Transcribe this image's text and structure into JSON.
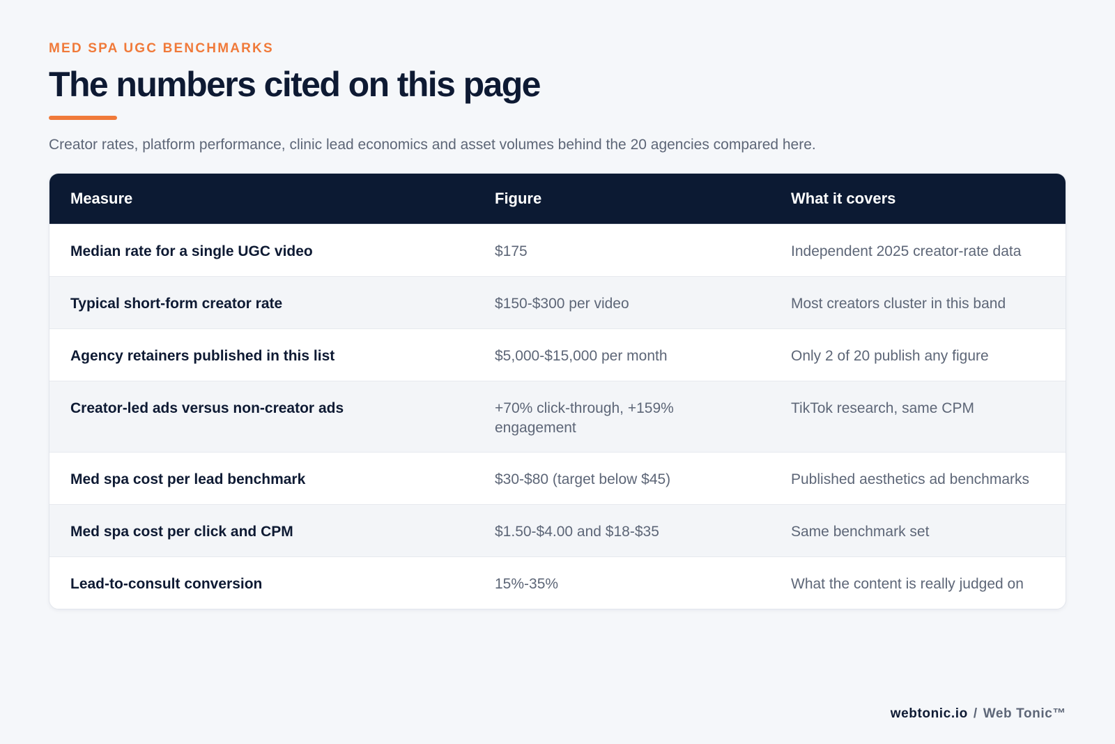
{
  "header": {
    "eyebrow": "MED SPA UGC BENCHMARKS",
    "title": "The numbers cited on this page",
    "subtitle": "Creator rates, platform performance, clinic lead economics and asset volumes behind the 20 agencies compared here."
  },
  "table": {
    "columns": [
      "Measure",
      "Figure",
      "What it covers"
    ],
    "rows": [
      {
        "measure": "Median rate for a single UGC video",
        "figure": "$175",
        "covers": "Independent 2025 creator-rate data"
      },
      {
        "measure": "Typical short-form creator rate",
        "figure": "$150-$300 per video",
        "covers": "Most creators cluster in this band"
      },
      {
        "measure": "Agency retainers published in this list",
        "figure": "$5,000-$15,000 per month",
        "covers": "Only 2 of 20 publish any figure"
      },
      {
        "measure": "Creator-led ads versus non-creator ads",
        "figure": "+70% click-through, +159% engagement",
        "covers": "TikTok research, same CPM"
      },
      {
        "measure": "Med spa cost per lead benchmark",
        "figure": "$30-$80 (target below $45)",
        "covers": "Published aesthetics ad benchmarks"
      },
      {
        "measure": "Med spa cost per click and CPM",
        "figure": "$1.50-$4.00 and $18-$35",
        "covers": "Same benchmark set"
      },
      {
        "measure": "Lead-to-consult conversion",
        "figure": "15%-35%",
        "covers": "What the content is really judged on"
      }
    ]
  },
  "footer": {
    "domain": "webtonic.io",
    "separator": "/",
    "brand": "Web Tonic™"
  },
  "colors": {
    "accent": "#f07a3a",
    "navy": "#0c1a33",
    "muted": "#5d6677"
  }
}
